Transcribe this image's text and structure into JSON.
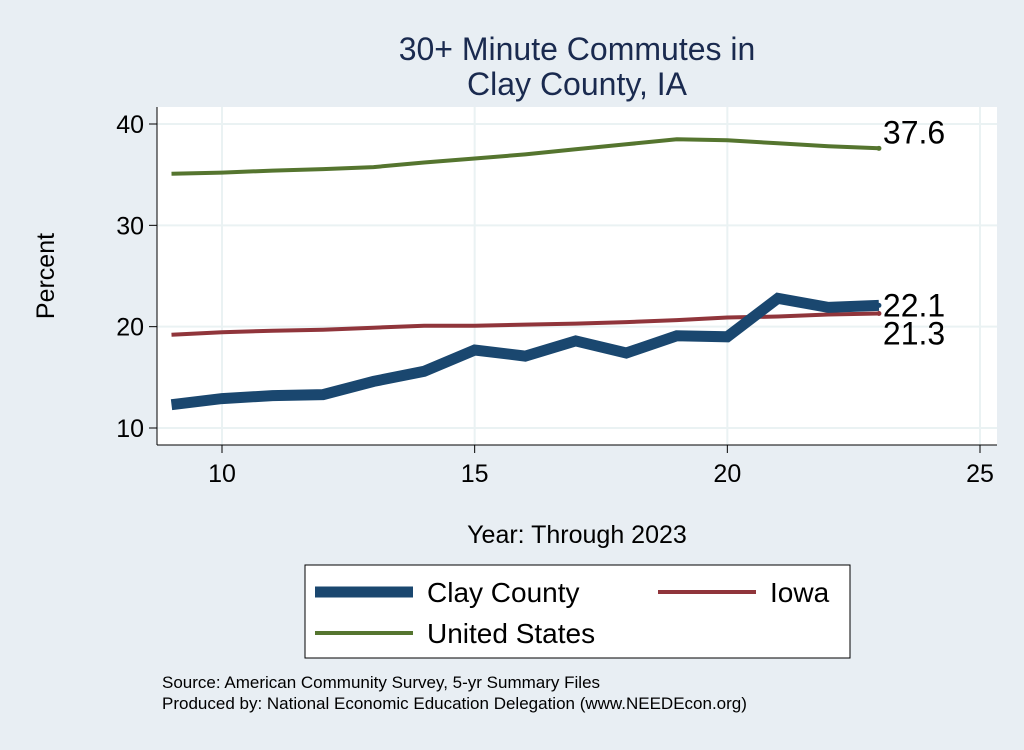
{
  "chart_data": {
    "type": "line",
    "title_lines": [
      "30+ Minute Commutes in",
      "Clay County, IA"
    ],
    "xlabel": "Year: Through 2023",
    "ylabel": "Percent",
    "xlim": [
      9,
      25
    ],
    "ylim": [
      9,
      41
    ],
    "xticks": [
      10,
      15,
      20,
      25
    ],
    "yticks": [
      10,
      20,
      30,
      40
    ],
    "grid": true,
    "legend_position": "bottom",
    "series": [
      {
        "name": "Clay County",
        "color": "#1a476f",
        "weight": "thick",
        "x": [
          9,
          10,
          11,
          12,
          13,
          14,
          15,
          16,
          17,
          18,
          19,
          20,
          21,
          22,
          23
        ],
        "y": [
          12.3,
          12.9,
          13.2,
          13.3,
          14.6,
          15.6,
          17.7,
          17.1,
          18.6,
          17.4,
          19.1,
          19.0,
          22.8,
          21.9,
          22.1
        ],
        "end_label": "22.1"
      },
      {
        "name": "Iowa",
        "color": "#90353b",
        "weight": "normal",
        "x": [
          9,
          10,
          11,
          12,
          13,
          14,
          15,
          16,
          17,
          18,
          19,
          20,
          21,
          22,
          23
        ],
        "y": [
          19.2,
          19.45,
          19.6,
          19.7,
          19.9,
          20.1,
          20.1,
          20.2,
          20.3,
          20.45,
          20.65,
          20.9,
          21.0,
          21.2,
          21.3
        ],
        "end_label": "21.3"
      },
      {
        "name": "United States",
        "color": "#55752f",
        "weight": "normal",
        "x": [
          9,
          10,
          11,
          12,
          13,
          14,
          15,
          16,
          17,
          18,
          19,
          20,
          21,
          22,
          23
        ],
        "y": [
          35.1,
          35.2,
          35.4,
          35.55,
          35.75,
          36.2,
          36.6,
          37.0,
          37.5,
          38.0,
          38.5,
          38.4,
          38.1,
          37.8,
          37.6
        ],
        "end_label": "37.6"
      }
    ],
    "legend_order": [
      "Clay County",
      "Iowa",
      "United States"
    ],
    "notes": [
      "Source: American Community Survey, 5-yr Summary Files",
      "Produced by: National Economic Education Delegation (www.NEEDEcon.org)"
    ]
  }
}
